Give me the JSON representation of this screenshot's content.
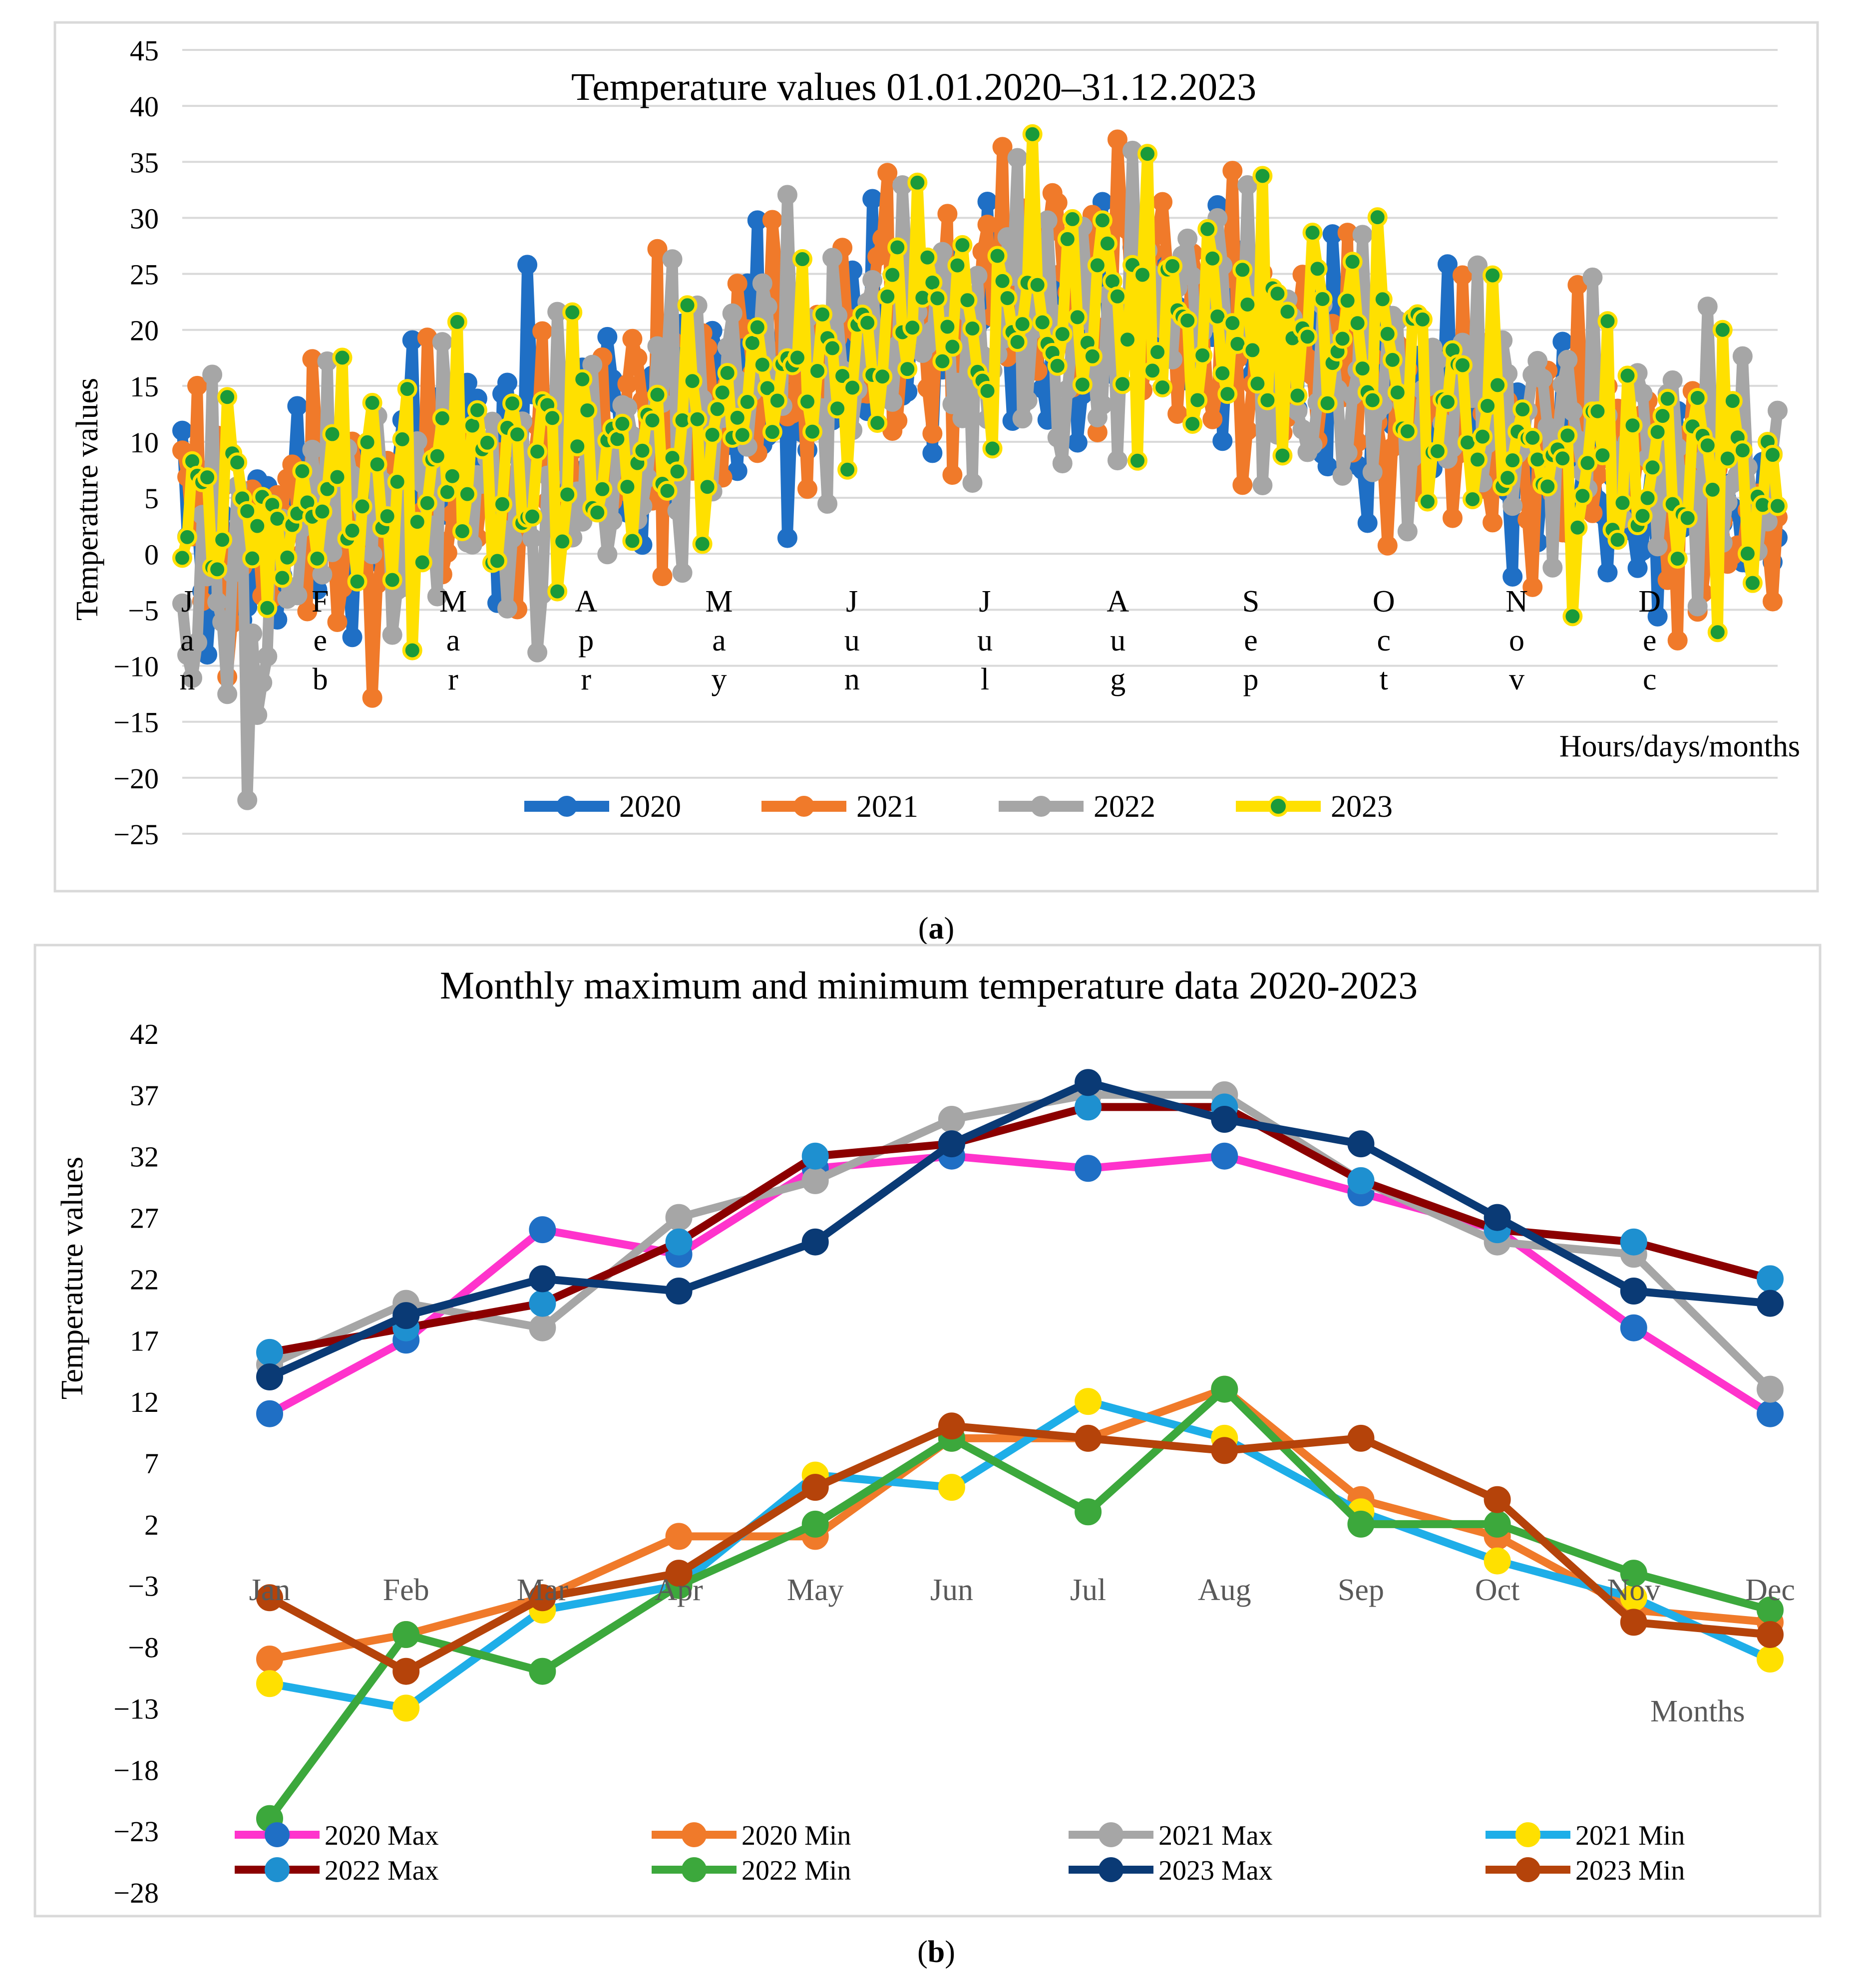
{
  "chart_data": [
    {
      "type": "line",
      "panel_label": "a",
      "title": "Temperature values 01.01.2020–31.12.2023",
      "xlabel": "Hours/days/months",
      "ylabel": "Temperature values",
      "ylim": [
        -25,
        45
      ],
      "yticks": [
        45,
        40,
        35,
        30,
        25,
        20,
        15,
        10,
        5,
        0,
        -5,
        -10,
        -15,
        -20,
        -25
      ],
      "ytick_labels": [
        "45",
        "40",
        "35",
        "30",
        "25",
        "20",
        "15",
        "10",
        "5",
        "0",
        "−5",
        "−10",
        "−15",
        "−20",
        "−25"
      ],
      "month_labels": [
        [
          "J",
          "a",
          "n"
        ],
        [
          "F",
          "e",
          "b"
        ],
        [
          "M",
          "a",
          "r"
        ],
        [
          "A",
          "p",
          "r"
        ],
        [
          "M",
          "a",
          "y"
        ],
        [
          "J",
          "u",
          "n"
        ],
        [
          "J",
          "u",
          "l"
        ],
        [
          "A",
          "u",
          "g"
        ],
        [
          "S",
          "e",
          "p"
        ],
        [
          "O",
          "c",
          "t"
        ],
        [
          "N",
          "o",
          "v"
        ],
        [
          "D",
          "e",
          "c"
        ]
      ],
      "grid": true,
      "legend_position": "bottom",
      "series_style": {
        "2020": {
          "color": "#1f6fc5",
          "marker_fill": "#1f6fc5",
          "marker_edge": "#1f6fc5"
        },
        "2021": {
          "color": "#f07a2a",
          "marker_fill": "#f07a2a",
          "marker_edge": "#f07a2a"
        },
        "2022": {
          "color": "#a6a6a6",
          "marker_fill": "#a6a6a6",
          "marker_edge": "#a6a6a6"
        },
        "2023": {
          "color": "#ffe000",
          "marker_fill": "#1a9a3a",
          "marker_edge": "#ffe000"
        }
      },
      "series": [
        {
          "name": "2020",
          "x": [
            0,
            1,
            2,
            3,
            4,
            5,
            6,
            7,
            8,
            9,
            10,
            11
          ],
          "max": [
            11,
            17,
            26,
            24,
            31,
            32,
            31,
            32,
            29,
            26,
            18,
            11
          ],
          "min": [
            -9,
            -7,
            -4,
            1,
            1,
            9,
            9,
            13,
            4,
            1,
            -5,
            -6
          ]
        },
        {
          "name": "2021",
          "x": [
            0,
            1,
            2,
            3,
            4,
            5,
            6,
            7,
            8,
            9,
            10,
            11
          ],
          "max": [
            15,
            20,
            18,
            27,
            30,
            35,
            37,
            37,
            30,
            25,
            24,
            13
          ],
          "min": [
            -11,
            -13,
            -5,
            -3,
            6,
            5,
            12,
            9,
            3,
            -1,
            -4,
            -9
          ]
        },
        {
          "name": "2022",
          "x": [
            0,
            1,
            2,
            3,
            4,
            5,
            6,
            7,
            8,
            9,
            10,
            11
          ],
          "max": [
            16,
            18,
            20,
            25,
            32,
            33,
            36,
            36,
            30,
            26,
            25,
            22
          ],
          "min": [
            -22,
            -7,
            -10,
            -3,
            2,
            9,
            3,
            13,
            2,
            2,
            -2,
            -5
          ]
        },
        {
          "name": "2023",
          "x": [
            0,
            1,
            2,
            3,
            4,
            5,
            6,
            7,
            8,
            9,
            10,
            11
          ],
          "max": [
            14,
            19,
            22,
            21,
            25,
            33,
            38,
            35,
            33,
            27,
            21,
            20
          ],
          "min": [
            -4,
            -10,
            -4,
            -2,
            5,
            10,
            9,
            8,
            9,
            4,
            -6,
            -7
          ]
        }
      ]
    },
    {
      "type": "line",
      "panel_label": "b",
      "title": "Monthly maximum and minimum temperature data 2020-2023",
      "xlabel": "Months",
      "ylabel": "Temperature values",
      "categories": [
        "Jan",
        "Feb",
        "Mar",
        "Apr",
        "May",
        "Jun",
        "Jul",
        "Aug",
        "Sep",
        "Oct",
        "Nov",
        "Dec"
      ],
      "ylim": [
        -28,
        42
      ],
      "yticks": [
        42,
        37,
        32,
        27,
        22,
        17,
        12,
        7,
        2,
        -3,
        -8,
        -13,
        -18,
        -23,
        -28
      ],
      "ytick_labels": [
        "42",
        "37",
        "32",
        "27",
        "22",
        "17",
        "12",
        "7",
        "2",
        "−3",
        "−8",
        "−13",
        "−18",
        "−23",
        "−28"
      ],
      "grid": false,
      "legend_position": "bottom",
      "series": [
        {
          "name": "2020 Max",
          "color": "#ff33cc",
          "marker": "#1f6fc5",
          "marker_edge": "#1f6fc5",
          "values": [
            11,
            17,
            26,
            24,
            31,
            32,
            31,
            32,
            29,
            26,
            18,
            11
          ]
        },
        {
          "name": "2020 Min",
          "color": "#f07a2a",
          "marker": "#f07a2a",
          "marker_edge": "#f07a2a",
          "values": [
            -9,
            -7,
            -4,
            1,
            1,
            9,
            9,
            13,
            4,
            1,
            -5,
            -6
          ]
        },
        {
          "name": "2021 Max",
          "color": "#a6a6a6",
          "marker": "#a6a6a6",
          "marker_edge": "#a6a6a6",
          "values": [
            15,
            20,
            18,
            27,
            30,
            35,
            37,
            37,
            30,
            25,
            24,
            13
          ]
        },
        {
          "name": "2021 Min",
          "color": "#1eaee8",
          "marker": "#ffe000",
          "marker_edge": "#ffe000",
          "values": [
            -11,
            -13,
            -5,
            -3,
            6,
            5,
            12,
            9,
            3,
            -1,
            -4,
            -9
          ]
        },
        {
          "name": "2022 Max",
          "color": "#8b0000",
          "marker": "#1e90d0",
          "marker_edge": "#1e90d0",
          "values": [
            16,
            18,
            20,
            25,
            32,
            33,
            36,
            36,
            30,
            26,
            25,
            22
          ]
        },
        {
          "name": "2022 Min",
          "color": "#3ca83c",
          "marker": "#3ca83c",
          "marker_edge": "#3ca83c",
          "values": [
            -22,
            -7,
            -10,
            -3,
            2,
            9,
            3,
            13,
            2,
            2,
            -2,
            -5
          ]
        },
        {
          "name": "2023 Max",
          "color": "#0a3a75",
          "marker": "#0a3a75",
          "marker_edge": "#0a3a75",
          "values": [
            14,
            19,
            22,
            21,
            25,
            33,
            38,
            35,
            33,
            27,
            21,
            20
          ]
        },
        {
          "name": "2023 Min",
          "color": "#b5430a",
          "marker": "#b5430a",
          "marker_edge": "#b5430a",
          "values": [
            -4,
            -10,
            -4,
            -2,
            5,
            10,
            9,
            8,
            9,
            4,
            -6,
            -7
          ]
        }
      ]
    }
  ]
}
